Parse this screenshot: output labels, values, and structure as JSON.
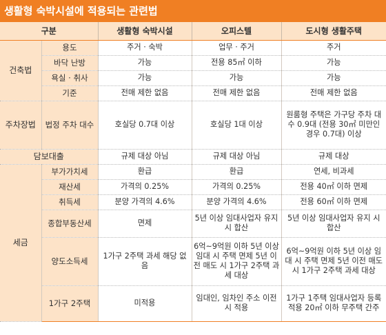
{
  "title": "생활형 숙박시설에 적용되는 관련법",
  "headers": [
    "구분",
    "생활형 숙박시설",
    "오피스텔",
    "도시형 생활주택"
  ],
  "categories": {
    "building": "건축법",
    "parking": "주차장법",
    "loan": "담보대출",
    "tax": "세금"
  },
  "rows": {
    "usage": {
      "label": "용도",
      "c1": "주거 · 숙박",
      "c2": "업무 · 주거",
      "c3": "주거"
    },
    "heating": {
      "label": "바닥 난방",
      "c1": "가능",
      "c2": "전용 85㎡ 이하",
      "c3": "가능"
    },
    "bath": {
      "label": "욕실 · 취사",
      "c1": "가능",
      "c2": "가능",
      "c3": "가능"
    },
    "std": {
      "label": "기준",
      "c1": "전매 제한 없음",
      "c2": "전매 제한 없음",
      "c3": "전매 제한 없음"
    },
    "parking": {
      "label": "법정 주차 대수",
      "c1": "호실당 0.7대 이상",
      "c2": "호실당 1대 이상",
      "c3": "원룸형 주택은 가구당 주차 대수 0.9대 (전용 30㎡ 미만인 경우 0.7대) 이상"
    },
    "loan": {
      "c1": "규제 대상 아님",
      "c2": "규제 대상 아님",
      "c3": "규제 대상"
    },
    "vat": {
      "label": "부가가치세",
      "c1": "환급",
      "c2": "환급",
      "c3": "연세, 비과세"
    },
    "property": {
      "label": "재산세",
      "c1": "가격의 0.25%",
      "c2": "가격의 0.25%",
      "c3": "전용 40㎡ 이하 면제"
    },
    "acq": {
      "label": "취득세",
      "c1": "분양 가격의 4.6%",
      "c2": "분양 가격의 4.6%",
      "c3": "전용 60㎡ 이하 면제"
    },
    "comp": {
      "label": "종합부동산세",
      "c1": "면제",
      "c2": "5년 이상 임대사업자 유지 시 합산",
      "c3": "5년 이상 임대사업자 유지 시 합산"
    },
    "transfer": {
      "label": "양도소득세",
      "c1": "1가구 2주택 과세 해당 없음",
      "c2": "6억~9억원 이하 5년 이상 임대 시 주택 면제 5년 이전 매도 시 1가구 2주택 과세 대상",
      "c3": "6억~9억원 이하 5년 이상 임대 시 주택 면제 5년 이전 매도 시 1가구 2주택 과세 대상"
    },
    "multi": {
      "label": "1가구 2주택",
      "c1": "미적용",
      "c2": "임대인, 임차인 주소 이전 시 적용",
      "c3": "1가구 1주택 임대사업자 등록 적용 20㎡ 이하 무주택 간주"
    }
  }
}
